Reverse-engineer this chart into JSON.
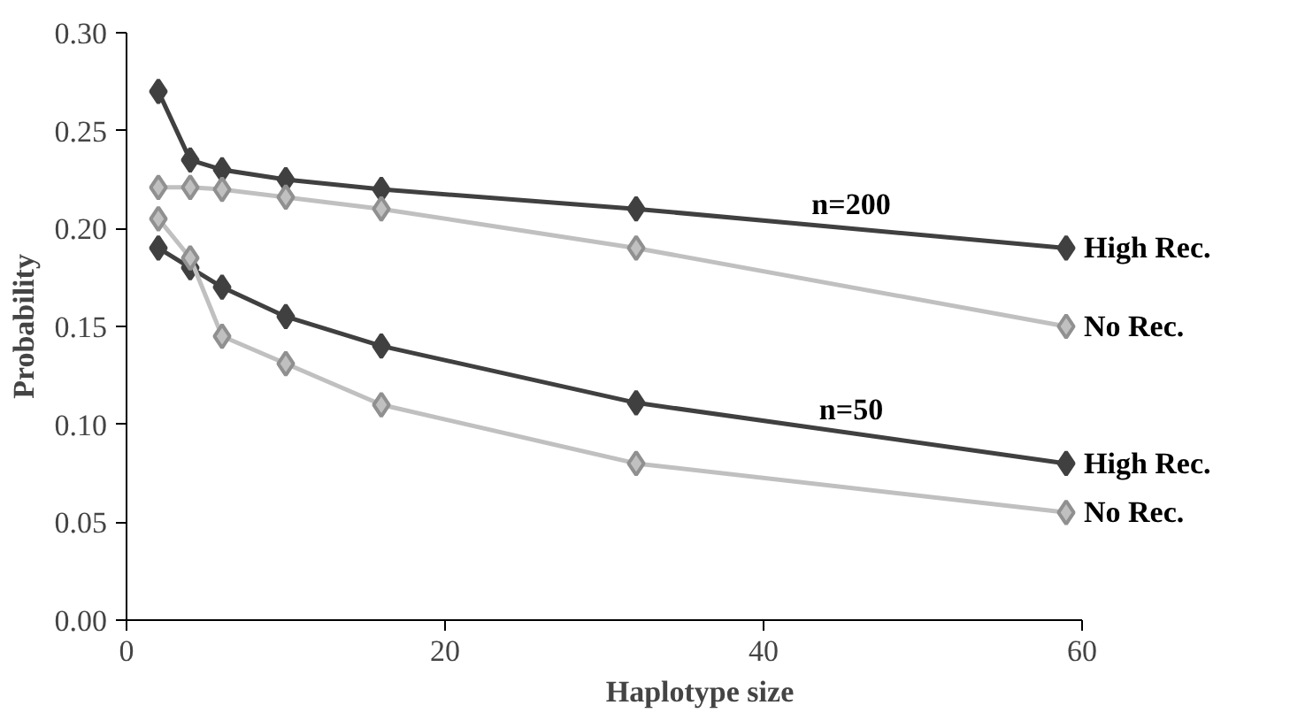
{
  "chart_data": {
    "type": "line",
    "xlabel": "Haplotype size",
    "ylabel": "Probability",
    "marker": "diamond",
    "grid": false,
    "x": [
      2,
      4,
      6,
      10,
      16,
      32,
      59
    ],
    "xlim": [
      0,
      60
    ],
    "xticks": [
      0,
      20,
      40,
      60
    ],
    "ylim": [
      0,
      0.3
    ],
    "yticks": [
      {
        "value": 0,
        "label": "0.00"
      },
      {
        "value": 0.05,
        "label": "0.05"
      },
      {
        "value": 0.1,
        "label": "0.10"
      },
      {
        "value": 0.15,
        "label": "0.15"
      },
      {
        "value": 0.2,
        "label": "0.20"
      },
      {
        "value": 0.25,
        "label": "0.25"
      },
      {
        "value": 0.3,
        "label": "0.30"
      }
    ],
    "series": [
      {
        "name": "High Rec.",
        "color": "#404040",
        "values": [
          0.27,
          0.235,
          0.23,
          0.225,
          0.22,
          0.21,
          0.19
        ]
      },
      {
        "name": "No Rec.",
        "color": "#c0c0c0",
        "values": [
          0.221,
          0.221,
          0.22,
          0.216,
          0.21,
          0.19,
          0.15
        ]
      },
      {
        "name": "High Rec.",
        "color": "#404040",
        "values": [
          0.19,
          0.18,
          0.17,
          0.155,
          0.14,
          0.111,
          0.08
        ]
      },
      {
        "name": "No Rec.",
        "color": "#c0c0c0",
        "values": [
          0.205,
          0.185,
          0.145,
          0.131,
          0.11,
          0.08,
          0.055
        ]
      }
    ],
    "annotations": [
      "n=200",
      "n=50"
    ]
  }
}
